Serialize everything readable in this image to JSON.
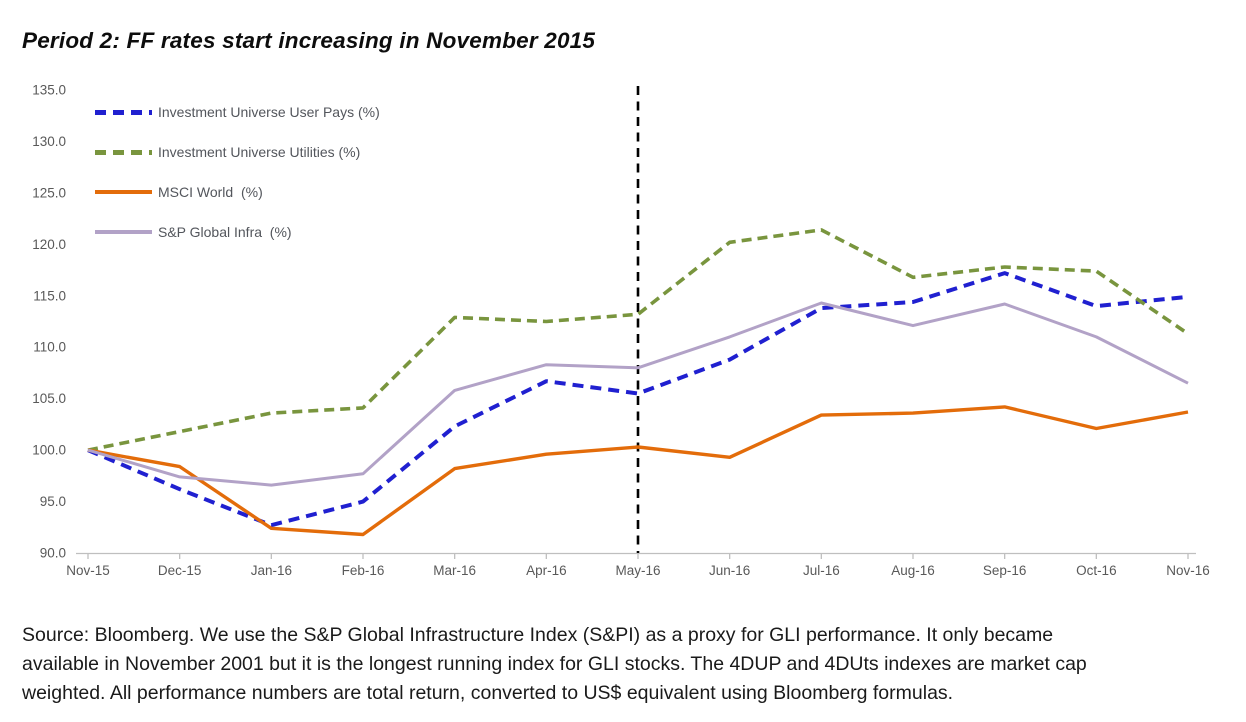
{
  "title": "Period 2: FF rates start increasing in November 2015",
  "source": {
    "lines": [
      "Source: Bloomberg. We use the S&P Global Infrastructure Index (S&PI) as a proxy for GLI performance. It only became",
      "available in November 2001 but it is the longest running index for GLI stocks. The 4DUP and 4DUts indexes are market cap",
      "weighted. All performance numbers are total return, converted to US$ equivalent using Bloomberg formulas."
    ]
  },
  "colors": {
    "user_pays_blue": "#2020D0",
    "utilities_green": "#79953E",
    "msci_orange": "#E36C0A",
    "sp_infra_purple": "#B2A2C7",
    "axis_text": "#595959",
    "axis_line": "#BFBFBF",
    "event_line": "#000000",
    "background": "#FFFFFF"
  },
  "chart_data": {
    "type": "line",
    "categories": [
      "Nov-15",
      "Dec-15",
      "Jan-16",
      "Feb-16",
      "Mar-16",
      "Apr-16",
      "May-16",
      "Jun-16",
      "Jul-16",
      "Aug-16",
      "Sep-16",
      "Oct-16",
      "Nov-16"
    ],
    "series": [
      {
        "name": "Investment Universe User Pays (%)",
        "color": "#2020D0",
        "style": "dashed",
        "values": [
          100.0,
          96.2,
          92.7,
          95.0,
          102.3,
          106.7,
          105.5,
          108.8,
          113.8,
          114.4,
          117.2,
          114.0,
          114.9
        ]
      },
      {
        "name": "Investment Universe Utilities (%)",
        "color": "#79953E",
        "style": "dashed",
        "values": [
          100.0,
          101.8,
          103.6,
          104.1,
          112.9,
          112.5,
          113.2,
          120.2,
          121.4,
          116.8,
          117.8,
          117.4,
          111.3
        ]
      },
      {
        "name": "MSCI World  (%)",
        "color": "#E36C0A",
        "style": "solid",
        "values": [
          100.0,
          98.4,
          92.4,
          91.8,
          98.2,
          99.6,
          100.3,
          99.3,
          103.4,
          103.6,
          104.2,
          102.1,
          103.7
        ]
      },
      {
        "name": "S&P Global Infra  (%)",
        "color": "#B2A2C7",
        "style": "solid",
        "values": [
          100.0,
          97.4,
          96.6,
          97.7,
          105.8,
          108.3,
          108.0,
          111.0,
          114.3,
          112.1,
          114.2,
          111.0,
          106.5
        ]
      }
    ],
    "ylim": [
      90.0,
      135.0
    ],
    "ytick_step": 5.0,
    "ytick_decimals": 1,
    "grid": false,
    "legend_position": "top-left-inside",
    "annotation": {
      "type": "vertical-dashed-line",
      "x": "May-16",
      "color": "#000000"
    }
  }
}
